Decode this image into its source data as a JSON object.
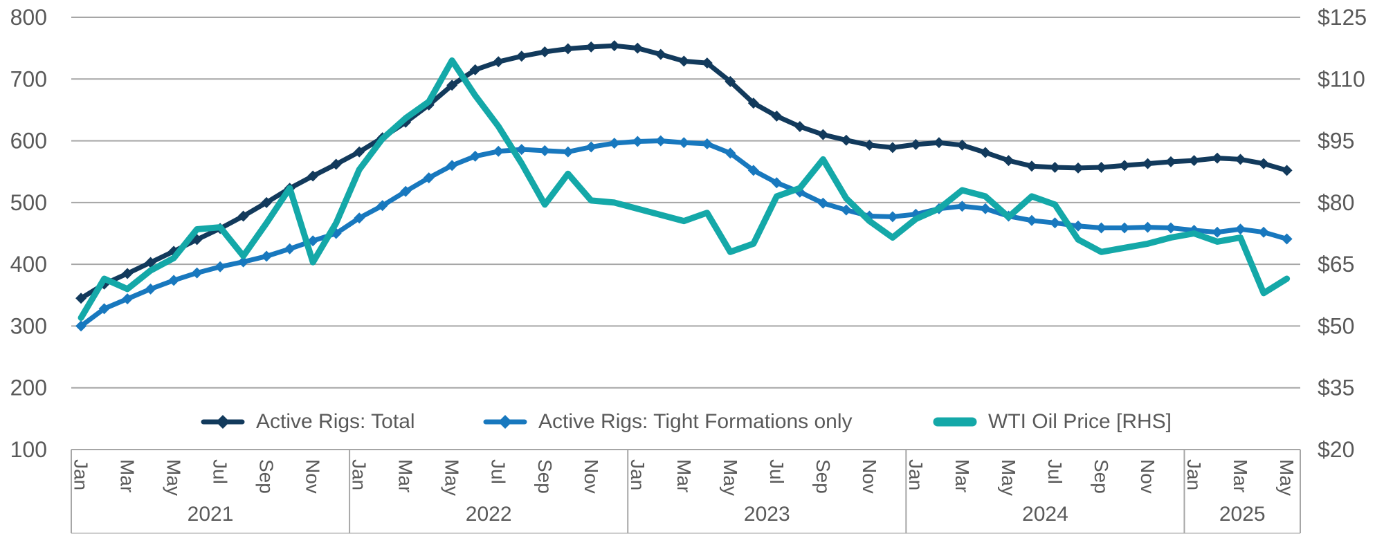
{
  "chart_data": {
    "type": "line",
    "title": "",
    "frequency": "monthly",
    "x_start": "Jan 2021",
    "x_end": "May 2025",
    "x_axis": {
      "years": [
        {
          "label": "2021",
          "n_months": 12,
          "month_tick_labels": [
            "Jan",
            "Mar",
            "May",
            "Jul",
            "Sep",
            "Nov"
          ]
        },
        {
          "label": "2022",
          "n_months": 12,
          "month_tick_labels": [
            "Jan",
            "Mar",
            "May",
            "Jul",
            "Sep",
            "Nov"
          ]
        },
        {
          "label": "2023",
          "n_months": 12,
          "month_tick_labels": [
            "Jan",
            "Mar",
            "May",
            "Jul",
            "Sep",
            "Nov"
          ]
        },
        {
          "label": "2024",
          "n_months": 12,
          "month_tick_labels": [
            "Jan",
            "Mar",
            "May",
            "Jul",
            "Sep",
            "Nov"
          ]
        },
        {
          "label": "2025",
          "n_months": 5,
          "month_tick_labels": [
            "Jan",
            "Mar",
            "May"
          ]
        }
      ],
      "tick_label_rotation_deg": 90
    },
    "left_axis": {
      "tick_labels": [
        "800",
        "700",
        "600",
        "500",
        "400",
        "300",
        "200",
        "100"
      ],
      "min": 100,
      "max": 800,
      "grid": true
    },
    "right_axis": {
      "tick_labels": [
        "$125",
        "$110",
        "$95",
        "$80",
        "$65",
        "$50",
        "$35",
        "$20"
      ],
      "min": 20,
      "max": 125,
      "grid": false
    },
    "series": [
      {
        "name": "Active Rigs: Total",
        "axis": "left",
        "color": "#123a5c",
        "marker": "diamond",
        "values": [
          345,
          368,
          385,
          403,
          421,
          440,
          458,
          478,
          500,
          523,
          543,
          562,
          582,
          605,
          630,
          658,
          690,
          715,
          728,
          737,
          744,
          749,
          752,
          754,
          750,
          740,
          729,
          726,
          696,
          661,
          640,
          623,
          610,
          601,
          593,
          589,
          594,
          597,
          593,
          581,
          568,
          559,
          557,
          556,
          557,
          560,
          563,
          566,
          568,
          572,
          570,
          563,
          552
        ]
      },
      {
        "name": "Active Rigs: Tight Formations only",
        "axis": "left",
        "color": "#1878be",
        "marker": "diamond",
        "values": [
          300,
          328,
          344,
          360,
          374,
          386,
          396,
          404,
          413,
          425,
          438,
          450,
          475,
          495,
          518,
          540,
          560,
          575,
          583,
          586,
          584,
          582,
          590,
          596,
          599,
          600,
          597,
          595,
          580,
          552,
          532,
          517,
          499,
          488,
          478,
          477,
          481,
          490,
          494,
          490,
          478,
          471,
          467,
          462,
          459,
          459,
          460,
          459,
          455,
          452,
          457,
          452,
          441
        ]
      },
      {
        "name": "WTI Oil Price [RHS]",
        "axis": "right",
        "color": "#14a8a8",
        "marker": "none",
        "values": [
          52,
          61.5,
          59,
          63.5,
          66.5,
          73.5,
          74,
          67,
          75,
          83.5,
          65.5,
          75,
          88,
          95.5,
          100.5,
          104.5,
          114.5,
          106,
          98.5,
          89.5,
          79.5,
          87,
          80.5,
          80,
          78.5,
          77,
          75.5,
          77.5,
          68,
          70,
          81.5,
          83.5,
          90.5,
          81,
          75.5,
          71.5,
          76,
          78.5,
          83,
          81.5,
          76.5,
          81.5,
          79.5,
          71,
          68,
          69,
          70,
          71.5,
          72.5,
          70.5,
          71.5,
          58,
          61.5
        ]
      }
    ],
    "legend": {
      "position": "bottom-inside",
      "items": [
        "Active Rigs: Total",
        "Active Rigs: Tight Formations only",
        "WTI Oil Price [RHS]"
      ]
    }
  },
  "colors": {
    "grid": "#a6a6a6",
    "axis_band_border": "#a6a6a6",
    "band_bottom_border": "#bdbdbd",
    "tick_text": "#595959",
    "legend_text": "#595959",
    "background": "#ffffff"
  }
}
